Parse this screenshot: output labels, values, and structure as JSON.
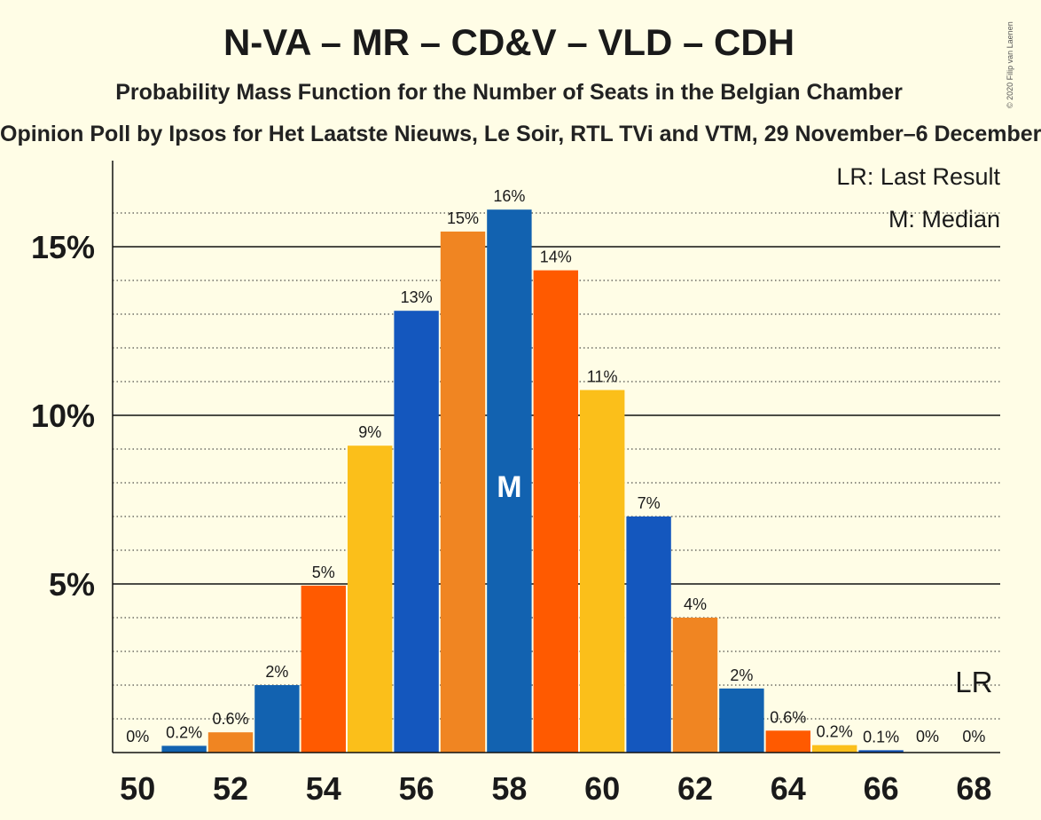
{
  "title": "N-VA – MR – CD&V – VLD – CDH",
  "subtitle": "Probability Mass Function for the Number of Seats in the Belgian Chamber",
  "subsubtitle": "Opinion Poll by Ipsos for Het Laatste Nieuws, Le Soir, RTL TVi and VTM, 29 November–6 December",
  "copyright": "© 2020 Filip van Laenen",
  "legend": {
    "last_result": "LR: Last Result",
    "median": "M: Median"
  },
  "colors": {
    "blue": "#1262b0",
    "orange": "#f08522",
    "red_orange": "#ff5a00",
    "yellow": "#fbbf1a",
    "royal_blue": "#1457be",
    "background": "#fffde6"
  },
  "chart_data": {
    "type": "bar",
    "x": [
      50,
      51,
      52,
      53,
      54,
      55,
      56,
      57,
      58,
      59,
      60,
      61,
      62,
      63,
      64,
      65,
      66,
      67,
      68
    ],
    "values": [
      0,
      0.2,
      0.6,
      2.0,
      4.95,
      9.1,
      13.1,
      15.45,
      16.1,
      14.3,
      10.75,
      7.0,
      4.0,
      1.9,
      0.65,
      0.22,
      0.07,
      0,
      0
    ],
    "labels": [
      "0%",
      "0.2%",
      "0.6%",
      "2%",
      "5%",
      "9%",
      "13%",
      "15%",
      "16%",
      "14%",
      "11%",
      "7%",
      "4%",
      "2%",
      "0.6%",
      "0.2%",
      "0.1%",
      "0%",
      "0%"
    ],
    "bar_colors": [
      "#1262b0",
      "#1262b0",
      "#f08522",
      "#1262b0",
      "#ff5a00",
      "#fbbf1a",
      "#1457be",
      "#f08522",
      "#1262b0",
      "#ff5a00",
      "#fbbf1a",
      "#1457be",
      "#f08522",
      "#1262b0",
      "#ff5a00",
      "#fbbf1a",
      "#1457be",
      "#f08522",
      "#1262b0"
    ],
    "x_ticks": [
      "50",
      "52",
      "54",
      "56",
      "58",
      "60",
      "62",
      "64",
      "66",
      "68"
    ],
    "y_ticks": [
      {
        "value": 5,
        "label": "5%"
      },
      {
        "value": 10,
        "label": "10%"
      },
      {
        "value": 15,
        "label": "15%"
      }
    ],
    "ylim": [
      0,
      17
    ],
    "median_seat": 58,
    "median_label": "M",
    "last_result_seat": 68,
    "last_result_label": "LR",
    "grid": true
  }
}
